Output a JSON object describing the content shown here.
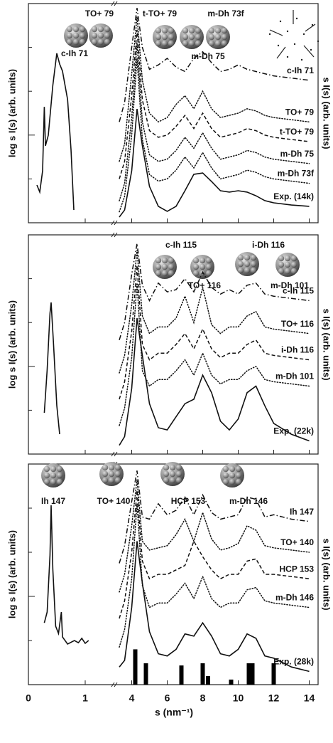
{
  "chart_data": [
    {
      "type": "line",
      "ylabel": "log s I(s)  (arb. units)",
      "y2label": "s I(s)  (arb. units)",
      "xlim": [
        0,
        14.5
      ],
      "xbreak": [
        1.45,
        3.3
      ],
      "xticks": [
        0,
        1,
        4,
        6,
        8,
        10,
        12,
        14
      ],
      "ylim": [
        0,
        10
      ],
      "yticks": [
        2,
        4,
        6,
        8
      ],
      "annotations": [
        "TO+ 79",
        "t-TO+ 79",
        "m-Dh 73f",
        "c-Ih 71",
        "m-Dh 75"
      ],
      "x": [
        3.3,
        3.6,
        4.0,
        4.3,
        4.6,
        5.0,
        5.5,
        6.0,
        6.5,
        7.0,
        7.5,
        8.0,
        8.5,
        9.0,
        9.5,
        10,
        10.5,
        11,
        11.5,
        12,
        13,
        14
      ],
      "series": [
        {
          "name": "c-Ih 71",
          "style": "dashdot",
          "color": "#111",
          "values": [
            4.6,
            5.5,
            8.0,
            9.8,
            8.0,
            7.0,
            7.2,
            7.5,
            7.1,
            6.9,
            7.5,
            7.8,
            7.3,
            6.9,
            7.0,
            7.2,
            7.0,
            6.9,
            6.8,
            6.7,
            6.6,
            6.5
          ]
        },
        {
          "name": "TO+ 79",
          "style": "dotted",
          "color": "#111",
          "values": [
            2.8,
            3.6,
            6.8,
            9.4,
            6.5,
            5.0,
            4.6,
            4.8,
            5.4,
            5.8,
            5.2,
            6.0,
            5.2,
            4.8,
            4.9,
            5.0,
            5.2,
            5.1,
            4.9,
            4.8,
            4.7,
            4.6
          ]
        },
        {
          "name": "t-TO+ 79",
          "style": "dashed",
          "color": "#111",
          "values": [
            2.0,
            2.8,
            5.8,
            8.8,
            5.6,
            4.2,
            3.9,
            4.0,
            4.4,
            4.9,
            4.3,
            5.0,
            4.3,
            3.9,
            4.0,
            4.1,
            4.3,
            4.2,
            4.0,
            3.9,
            3.8,
            3.7
          ]
        },
        {
          "name": "m-Dh 75",
          "style": "dotted",
          "color": "#111",
          "values": [
            1.0,
            1.8,
            4.8,
            8.2,
            4.6,
            3.1,
            2.8,
            2.9,
            3.3,
            3.9,
            3.4,
            4.1,
            3.4,
            2.9,
            3.0,
            3.1,
            3.3,
            3.2,
            3.0,
            2.9,
            2.8,
            2.7
          ]
        },
        {
          "name": "m-Dh 73f",
          "style": "dotted",
          "color": "#111",
          "values": [
            0.5,
            1.2,
            4.0,
            7.5,
            3.8,
            2.2,
            1.9,
            2.0,
            2.4,
            3.0,
            2.5,
            3.2,
            2.5,
            2.0,
            2.1,
            2.2,
            2.4,
            2.3,
            2.1,
            2.0,
            1.9,
            1.8
          ]
        },
        {
          "name": "Exp. (14k)",
          "style": "solid",
          "color": "#111",
          "values": [
            0.26,
            0.58,
            2.37,
            5.19,
            3.51,
            1.66,
            0.75,
            0.52,
            0.75,
            1.46,
            2.21,
            2.27,
            1.88,
            1.46,
            1.4,
            1.46,
            1.4,
            1.23,
            1.01,
            0.91,
            0.81,
            0.75
          ]
        },
        {
          "style": "solid",
          "color": "#111",
          "x": [
            0.15,
            0.2,
            0.25,
            0.28,
            0.3,
            0.35,
            0.43,
            0.5,
            0.55,
            0.6,
            0.69,
            0.75,
            0.8
          ],
          "values": [
            1.72,
            1.4,
            2.37,
            5.29,
            3.51,
            3.99,
            6.27,
            7.73,
            7.24,
            6.92,
            5.62,
            3.34,
            0.58
          ]
        }
      ]
    },
    {
      "type": "line",
      "ylabel": "log s I(s)  (arb. units)",
      "y2label": "s I(s)  (arb. units)",
      "xlim": [
        0,
        14.5
      ],
      "xbreak": [
        1.45,
        3.3
      ],
      "xticks": [
        0,
        1,
        4,
        6,
        8,
        10,
        12,
        14
      ],
      "ylim": [
        0,
        10
      ],
      "yticks": [
        2,
        4,
        6,
        8
      ],
      "annotations": [
        "c-Ih 115",
        "i-Dh 116",
        "TO+ 116",
        "m-Dh 101"
      ],
      "x": [
        3.3,
        3.6,
        4.0,
        4.3,
        4.6,
        5.0,
        5.5,
        6.0,
        6.5,
        7.0,
        7.5,
        8.0,
        8.5,
        9.0,
        9.5,
        10,
        10.5,
        11,
        11.5,
        12,
        13,
        14
      ],
      "series": [
        {
          "name": "c-Ih 115",
          "style": "dashdot",
          "color": "#111",
          "values": [
            5.2,
            6.0,
            8.2,
            9.6,
            7.7,
            7.0,
            7.8,
            7.4,
            7.5,
            8.0,
            7.4,
            8.3,
            7.6,
            7.3,
            7.5,
            7.3,
            7.7,
            7.8,
            7.3,
            7.2,
            7.1,
            7.0
          ]
        },
        {
          "name": "TO+ 116",
          "style": "dotted",
          "color": "#111",
          "values": [
            3.7,
            4.5,
            6.8,
            9.3,
            6.3,
            5.5,
            5.8,
            5.8,
            6.2,
            7.2,
            6.0,
            7.6,
            5.9,
            5.5,
            5.8,
            5.8,
            6.3,
            6.5,
            5.8,
            5.7,
            5.6,
            5.5
          ]
        },
        {
          "name": "i-Dh 116",
          "style": "dashed",
          "color": "#111",
          "values": [
            2.5,
            3.3,
            5.6,
            8.6,
            5.0,
            4.3,
            4.6,
            4.6,
            5.0,
            5.5,
            4.8,
            5.7,
            4.8,
            4.4,
            4.6,
            4.6,
            5.0,
            5.2,
            4.6,
            4.5,
            4.4,
            4.3
          ]
        },
        {
          "name": "m-Dh 101",
          "style": "dotted",
          "color": "#111",
          "values": [
            1.3,
            2.1,
            4.4,
            7.8,
            3.8,
            3.1,
            3.4,
            3.4,
            3.8,
            4.3,
            3.6,
            4.6,
            3.6,
            3.2,
            3.4,
            3.4,
            3.8,
            4.0,
            3.4,
            3.3,
            3.2,
            3.1
          ]
        },
        {
          "name": "Exp. (22k)",
          "style": "solid",
          "color": "#111",
          "values": [
            0.4,
            0.8,
            3.0,
            6.2,
            4.5,
            2.3,
            1.2,
            1.1,
            1.7,
            2.3,
            2.5,
            3.6,
            2.8,
            1.5,
            1.1,
            1.6,
            2.8,
            3.1,
            2.2,
            1.4,
            0.9,
            0.6
          ]
        },
        {
          "style": "solid",
          "color": "#111",
          "x": [
            0.28,
            0.33,
            0.38,
            0.4,
            0.44,
            0.5,
            0.55
          ],
          "values": [
            1.88,
            3.83,
            6.43,
            6.92,
            5.13,
            2.21,
            0.91
          ]
        }
      ]
    },
    {
      "type": "line",
      "ylabel": "log s I(s)  (arb. units)",
      "y2label": "s I(s)  (arb. units)",
      "xlabel": "s (nm⁻¹)",
      "xtick_labels": true,
      "xlim": [
        0,
        14.5
      ],
      "xbreak": [
        1.45,
        3.3
      ],
      "xticks": [
        0,
        1,
        4,
        6,
        8,
        10,
        12,
        14
      ],
      "ylim": [
        0,
        10
      ],
      "yticks": [
        2,
        4,
        6,
        8
      ],
      "annotations": [
        "Ih 147",
        "TO+ 140",
        "HCP 153",
        "m-Dh 146"
      ],
      "x": [
        3.3,
        3.6,
        4.0,
        4.3,
        4.6,
        5.0,
        5.5,
        6.0,
        6.5,
        7.0,
        7.5,
        8.0,
        8.5,
        9.0,
        9.5,
        10,
        10.5,
        11,
        11.5,
        12,
        13,
        14
      ],
      "series": [
        {
          "name": "Ih 147",
          "style": "dashdot",
          "color": "#111",
          "values": [
            5.5,
            6.3,
            8.3,
            9.7,
            7.6,
            7.5,
            8.2,
            7.7,
            7.9,
            8.5,
            7.7,
            8.6,
            7.8,
            7.5,
            7.6,
            7.7,
            8.5,
            8.4,
            7.6,
            7.7,
            7.5,
            7.4
          ]
        },
        {
          "name": "TO+ 140",
          "style": "dotted",
          "color": "#111",
          "values": [
            4.2,
            5.0,
            7.2,
            9.3,
            6.5,
            6.1,
            6.2,
            6.3,
            6.8,
            7.5,
            6.5,
            7.8,
            6.6,
            6.1,
            6.2,
            6.4,
            7.2,
            7.0,
            6.3,
            6.2,
            6.1,
            6.0
          ]
        },
        {
          "name": "HCP 153",
          "style": "dashed",
          "color": "#111",
          "values": [
            3.0,
            3.8,
            6.0,
            8.8,
            5.6,
            4.8,
            5.0,
            5.0,
            5.2,
            5.4,
            6.5,
            5.8,
            5.2,
            4.8,
            5.0,
            5.0,
            5.6,
            5.7,
            5.0,
            5.0,
            4.9,
            4.8
          ]
        },
        {
          "name": "m-Dh 146",
          "style": "dotted",
          "color": "#111",
          "values": [
            1.7,
            2.5,
            4.8,
            8.2,
            4.5,
            3.5,
            3.7,
            3.7,
            4.1,
            4.6,
            3.9,
            4.9,
            3.9,
            3.5,
            3.7,
            3.7,
            4.3,
            4.4,
            3.8,
            3.7,
            3.6,
            3.5
          ]
        },
        {
          "name": "Exp. (28k)",
          "style": "solid",
          "color": "#111",
          "values": [
            0.8,
            1.1,
            3.5,
            6.5,
            4.6,
            2.4,
            1.4,
            1.3,
            1.6,
            2.3,
            2.2,
            2.8,
            2.2,
            1.4,
            1.3,
            1.6,
            2.3,
            2.1,
            1.3,
            1.2,
            0.8,
            0.6
          ]
        },
        {
          "style": "solid",
          "color": "#111",
          "x": [
            0.28,
            0.33,
            0.38,
            0.4,
            0.43,
            0.48,
            0.53,
            0.58,
            0.6,
            0.69,
            0.81,
            0.88,
            0.94,
            1.0,
            1.06
          ],
          "values": [
            2.8,
            3.29,
            5.87,
            8.13,
            5.23,
            2.65,
            2.32,
            3.29,
            2.16,
            1.84,
            2.0,
            1.9,
            2.1,
            1.87,
            2.0
          ]
        },
        {
          "type": "bar",
          "color": "#000",
          "x": [
            4.2,
            4.8,
            6.8,
            8.0,
            8.3,
            9.6,
            10.6,
            10.8,
            12.0
          ],
          "values": [
            1.6,
            0.97,
            0.87,
            0.97,
            0.39,
            0.23,
            0.97,
            0.97,
            0.97
          ]
        }
      ]
    }
  ]
}
